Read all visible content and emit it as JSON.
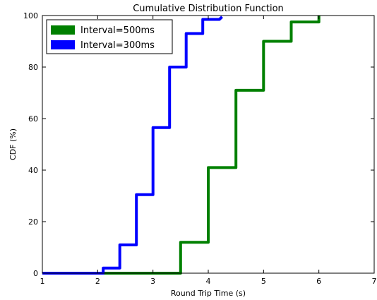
{
  "chart_data": {
    "type": "line",
    "title": "Cumulative Distribution Function",
    "xlabel": "Round Trip Time (s)",
    "ylabel": "CDF (%)",
    "xlim": [
      1,
      7
    ],
    "ylim": [
      0,
      100
    ],
    "xticks": [
      "1",
      "2",
      "3",
      "4",
      "5",
      "6",
      "7"
    ],
    "yticks": [
      "0",
      "20",
      "40",
      "60",
      "80",
      "100"
    ],
    "grid": false,
    "legend_position": "top-left",
    "series": [
      {
        "name": "Interval=500ms",
        "color": "#008000",
        "x": [
          1,
          3.5,
          3.5,
          4.0,
          4.0,
          4.5,
          4.5,
          5.0,
          5.0,
          5.5,
          5.5,
          6.0,
          6.0
        ],
        "y": [
          0,
          0,
          12,
          12,
          41,
          41,
          71,
          71,
          90,
          90,
          97.5,
          97.5,
          100
        ]
      },
      {
        "name": "Interval=300ms",
        "color": "#0000ff",
        "x": [
          1,
          2.1,
          2.1,
          2.4,
          2.4,
          2.7,
          2.7,
          3.0,
          3.0,
          3.3,
          3.3,
          3.6,
          3.6,
          3.9,
          3.9,
          4.2,
          4.25
        ],
        "y": [
          0,
          0,
          2,
          2,
          11,
          11,
          30.5,
          30.5,
          56.5,
          56.5,
          80,
          80,
          93,
          93,
          98.5,
          98.5,
          99.5
        ]
      }
    ]
  }
}
